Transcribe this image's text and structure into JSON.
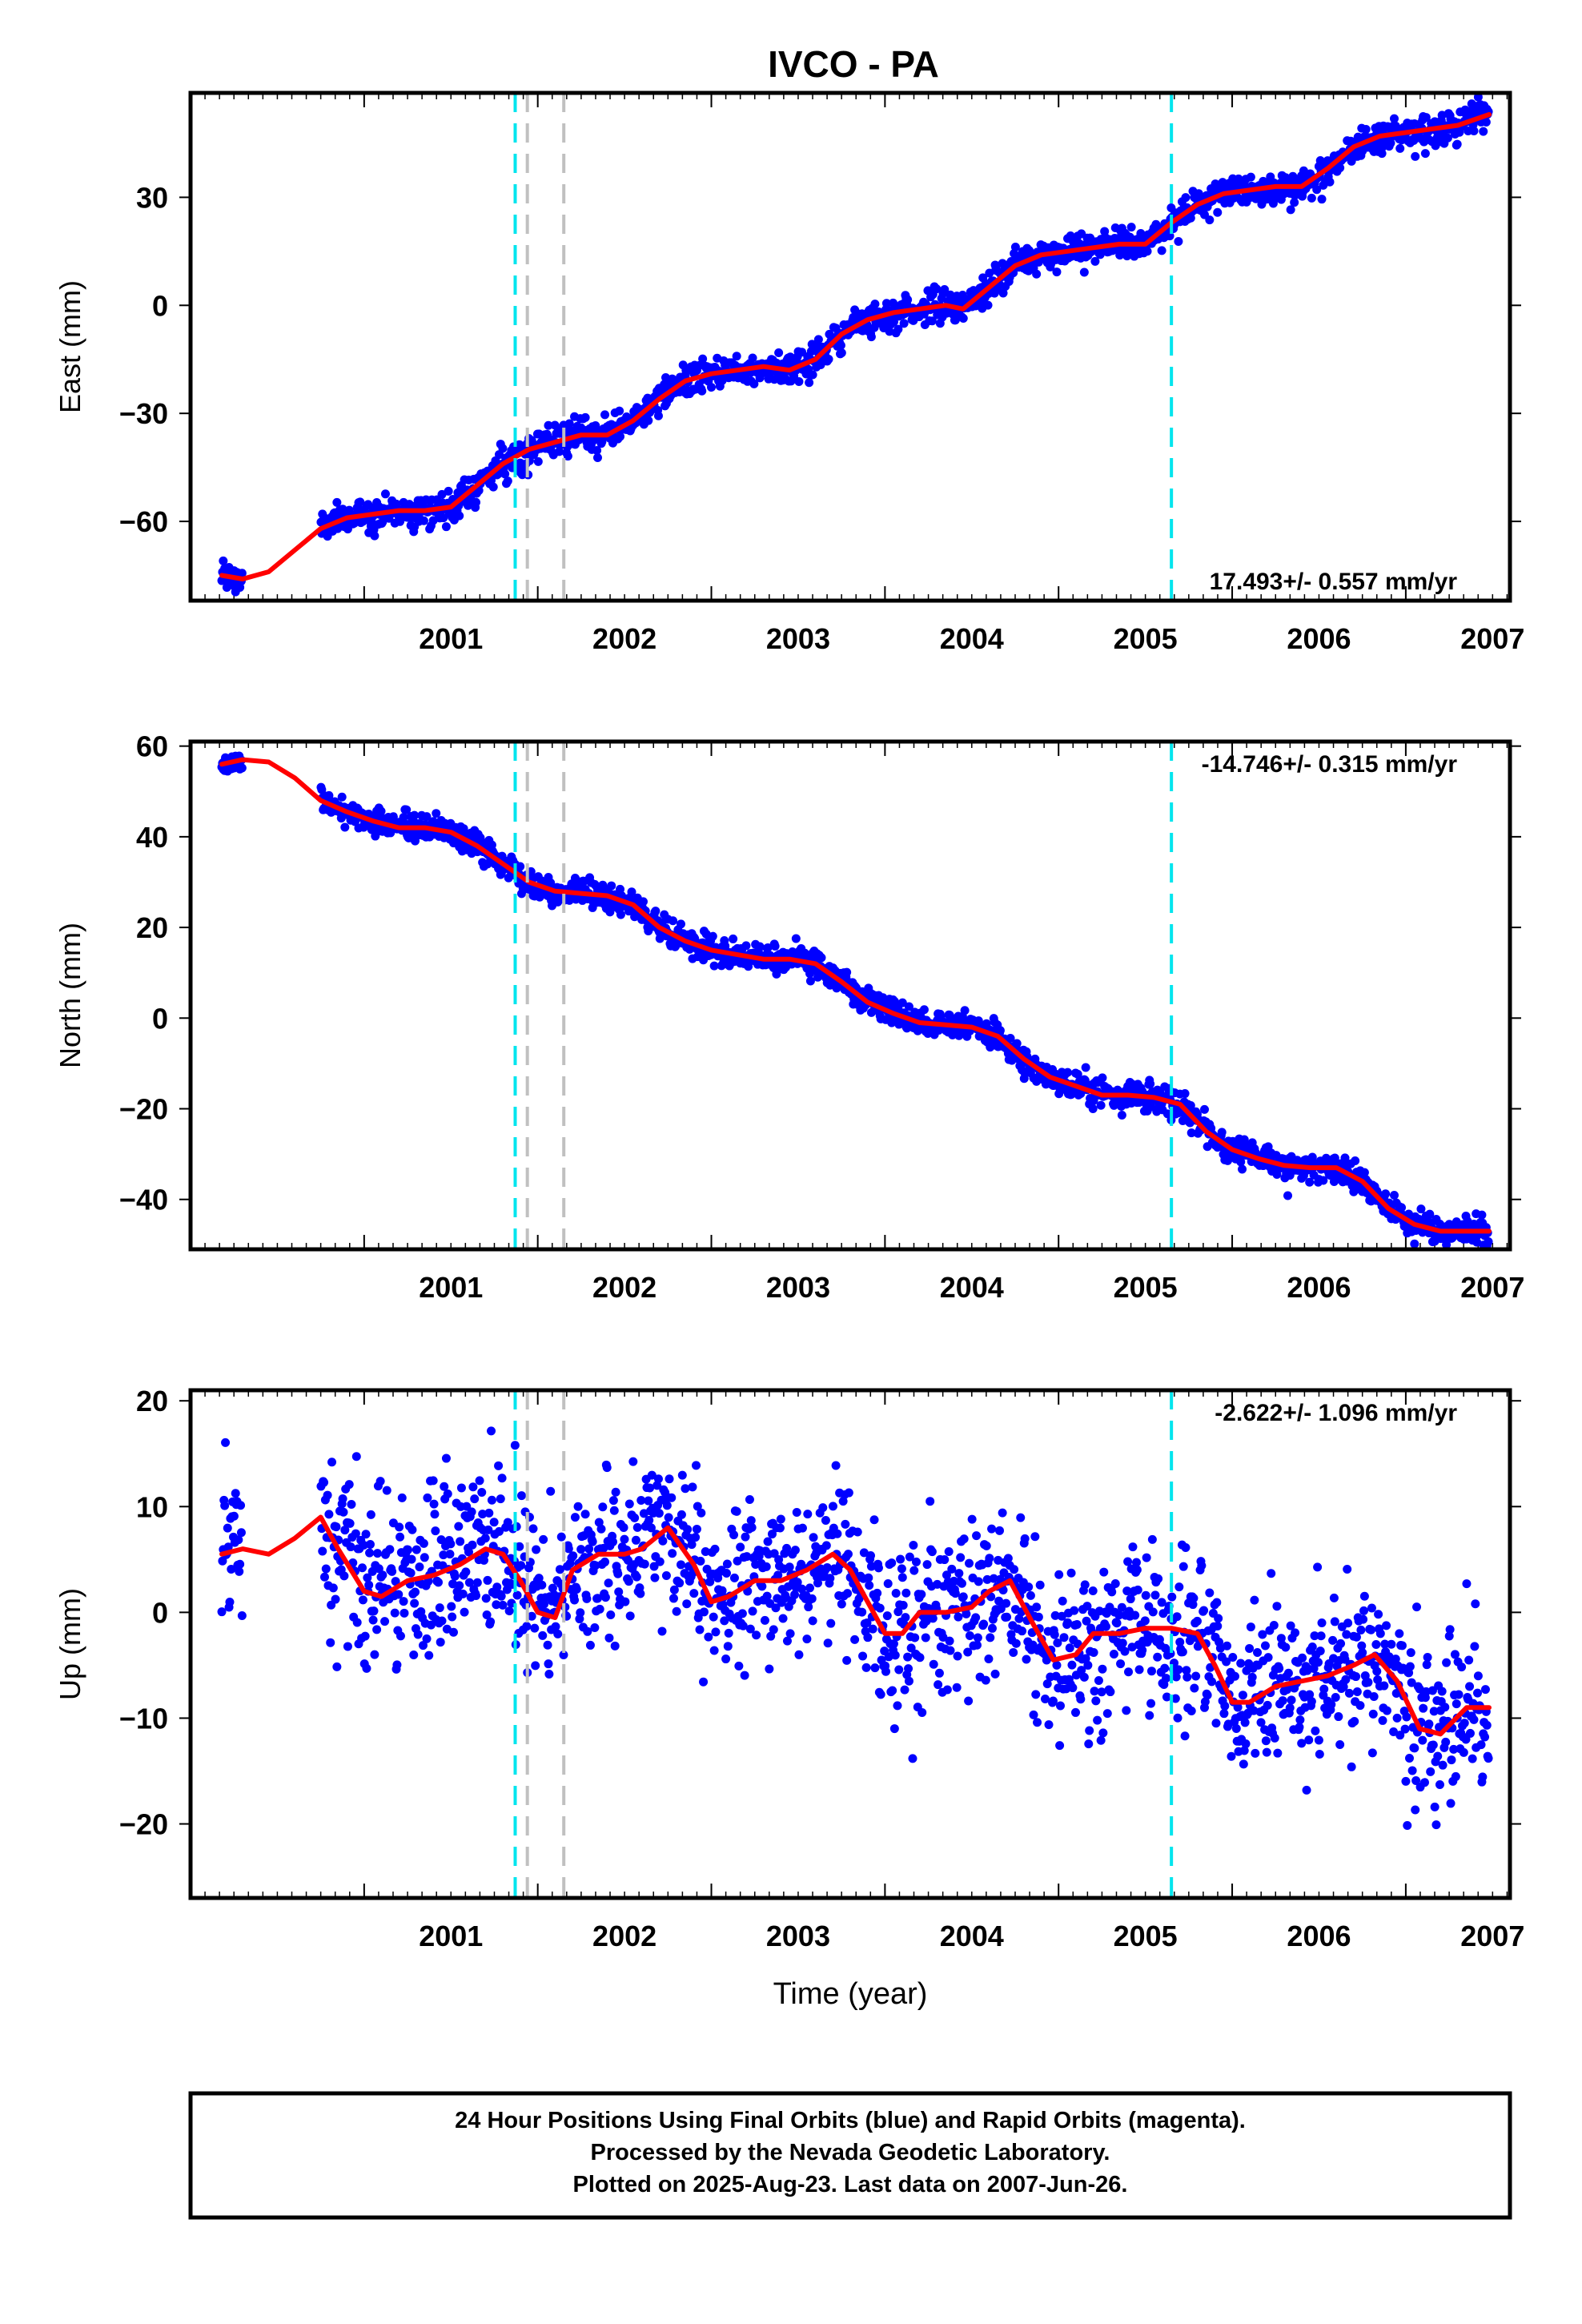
{
  "chart_data": [
    {
      "type": "scatter",
      "title": "IVCO - PA",
      "ylabel": "East (mm)",
      "xlabel": "",
      "xlim": [
        2000.0,
        2007.6
      ],
      "ylim": [
        -82,
        59
      ],
      "yticks": [
        -60,
        -30,
        0,
        30
      ],
      "xticks": [
        2001,
        2002,
        2003,
        2004,
        2005,
        2006,
        2007
      ],
      "rate_label": "17.493+/- 0.557 mm/yr",
      "rate_position": "bottom-right",
      "data_range": [
        2000.18,
        2007.48
      ],
      "noise": 2.2,
      "series": [
        {
          "name": "Final Orbits",
          "color": "#0000ff",
          "kind": "points"
        },
        {
          "name": "Fit",
          "color": "#ff0000",
          "kind": "line",
          "x": [
            2000.18,
            2000.3,
            2000.45,
            2000.6,
            2000.75,
            2000.9,
            2001.05,
            2001.2,
            2001.35,
            2001.5,
            2001.65,
            2001.8,
            2001.95,
            2002.1,
            2002.25,
            2002.4,
            2002.55,
            2002.7,
            2002.85,
            2003.0,
            2003.15,
            2003.3,
            2003.45,
            2003.6,
            2003.75,
            2003.9,
            2004.05,
            2004.2,
            2004.35,
            2004.45,
            2004.6,
            2004.75,
            2004.9,
            2005.05,
            2005.2,
            2005.35,
            2005.5,
            2005.65,
            2005.8,
            2005.95,
            2006.1,
            2006.25,
            2006.4,
            2006.55,
            2006.7,
            2006.85,
            2007.0,
            2007.15,
            2007.3,
            2007.48
          ],
          "y": [
            -75,
            -76,
            -74,
            -68,
            -62,
            -59,
            -58,
            -57,
            -57,
            -56,
            -50,
            -44,
            -40,
            -38,
            -36,
            -36,
            -32,
            -26,
            -21,
            -19,
            -18,
            -17,
            -18,
            -15,
            -8,
            -4,
            -2,
            -1,
            0,
            -1,
            5,
            11,
            14,
            15,
            16,
            17,
            17,
            23,
            28,
            31,
            32,
            33,
            33,
            38,
            44,
            47,
            48,
            49,
            50,
            53
          ]
        }
      ]
    },
    {
      "type": "scatter",
      "title": "",
      "ylabel": "North (mm)",
      "xlabel": "",
      "xlim": [
        2000.0,
        2007.6
      ],
      "ylim": [
        -51,
        61
      ],
      "yticks": [
        -40,
        -20,
        0,
        20,
        40,
        60
      ],
      "xticks": [
        2001,
        2002,
        2003,
        2004,
        2005,
        2006,
        2007
      ],
      "rate_label": "-14.746+/- 0.315 mm/yr",
      "rate_position": "top-right",
      "data_range": [
        2000.18,
        2007.48
      ],
      "noise": 1.5,
      "series": [
        {
          "name": "Final Orbits",
          "color": "#0000ff",
          "kind": "points"
        },
        {
          "name": "Fit",
          "color": "#ff0000",
          "kind": "line",
          "x": [
            2000.18,
            2000.3,
            2000.45,
            2000.6,
            2000.75,
            2000.9,
            2001.05,
            2001.2,
            2001.35,
            2001.5,
            2001.65,
            2001.8,
            2001.95,
            2002.1,
            2002.25,
            2002.4,
            2002.55,
            2002.7,
            2002.85,
            2003.0,
            2003.15,
            2003.3,
            2003.45,
            2003.6,
            2003.75,
            2003.9,
            2004.05,
            2004.2,
            2004.35,
            2004.5,
            2004.65,
            2004.8,
            2004.95,
            2005.1,
            2005.25,
            2005.4,
            2005.55,
            2005.7,
            2005.85,
            2006.0,
            2006.15,
            2006.3,
            2006.45,
            2006.6,
            2006.75,
            2006.9,
            2007.05,
            2007.2,
            2007.35,
            2007.48
          ],
          "y": [
            56,
            57,
            56.5,
            53,
            48,
            45.5,
            43.5,
            42,
            42,
            41,
            38,
            34,
            30,
            28,
            27.5,
            27,
            25,
            20,
            17,
            15,
            14,
            13,
            13,
            12,
            8,
            3.5,
            1,
            -1,
            -1.5,
            -2,
            -4,
            -9,
            -13,
            -15,
            -17,
            -17,
            -17.5,
            -19,
            -25,
            -29,
            -31,
            -32.5,
            -33,
            -33,
            -36,
            -42,
            -45.5,
            -47,
            -47,
            -47
          ]
        }
      ]
    },
    {
      "type": "scatter",
      "title": "",
      "ylabel": "Up (mm)",
      "xlabel": "Time (year)",
      "xlim": [
        2000.0,
        2007.6
      ],
      "ylim": [
        -27,
        21
      ],
      "yticks": [
        -20,
        -10,
        0,
        10,
        20
      ],
      "xticks": [
        2001,
        2002,
        2003,
        2004,
        2005,
        2006,
        2007
      ],
      "rate_label": "-2.622+/- 1.096 mm/yr",
      "rate_position": "top-right",
      "data_range": [
        2000.18,
        2007.48
      ],
      "noise": 4.0,
      "series": [
        {
          "name": "Final Orbits",
          "color": "#0000ff",
          "kind": "points"
        },
        {
          "name": "Fit",
          "color": "#ff0000",
          "kind": "line",
          "x": [
            2000.18,
            2000.3,
            2000.45,
            2000.6,
            2000.75,
            2000.85,
            2001.0,
            2001.1,
            2001.25,
            2001.4,
            2001.55,
            2001.7,
            2001.8,
            2001.9,
            2002.0,
            2002.1,
            2002.2,
            2002.35,
            2002.5,
            2002.6,
            2002.75,
            2002.9,
            2003.0,
            2003.1,
            2003.25,
            2003.4,
            2003.55,
            2003.7,
            2003.8,
            2003.9,
            2004.0,
            2004.1,
            2004.2,
            2004.35,
            2004.5,
            2004.6,
            2004.72,
            2004.85,
            2004.97,
            2005.1,
            2005.2,
            2005.35,
            2005.5,
            2005.65,
            2005.8,
            2005.9,
            2006.0,
            2006.1,
            2006.25,
            2006.4,
            2006.55,
            2006.7,
            2006.82,
            2006.95,
            2007.08,
            2007.2,
            2007.35,
            2007.48
          ],
          "y": [
            5.5,
            6,
            5.5,
            7,
            9,
            6,
            2,
            1.5,
            3,
            3.5,
            4.5,
            6,
            5.5,
            3,
            0,
            -0.5,
            4,
            5.5,
            5.5,
            6,
            8,
            4.5,
            1,
            1.5,
            3,
            3,
            4,
            5.5,
            4,
            1,
            -2,
            -2,
            0,
            0,
            0.5,
            2,
            3,
            -1,
            -4.5,
            -4,
            -2,
            -2,
            -1.5,
            -1.5,
            -2,
            -5,
            -8.5,
            -8.5,
            -7,
            -6.5,
            -6,
            -5,
            -4,
            -6.5,
            -11,
            -11.5,
            -9,
            -9
          ]
        }
      ]
    }
  ],
  "markers": {
    "cyan": [
      2001.87,
      2005.65
    ],
    "gray": [
      2001.94,
      2002.15
    ],
    "cyan_color": "#00e5ee",
    "gray_color": "#c0c0c0"
  },
  "footer": {
    "line1": "24 Hour Positions Using Final Orbits (blue) and Rapid Orbits (magenta).",
    "line2": "Processed by the Nevada Geodetic Laboratory.",
    "line3": "Plotted on 2025-Aug-23. Last data on 2007-Jun-26."
  }
}
